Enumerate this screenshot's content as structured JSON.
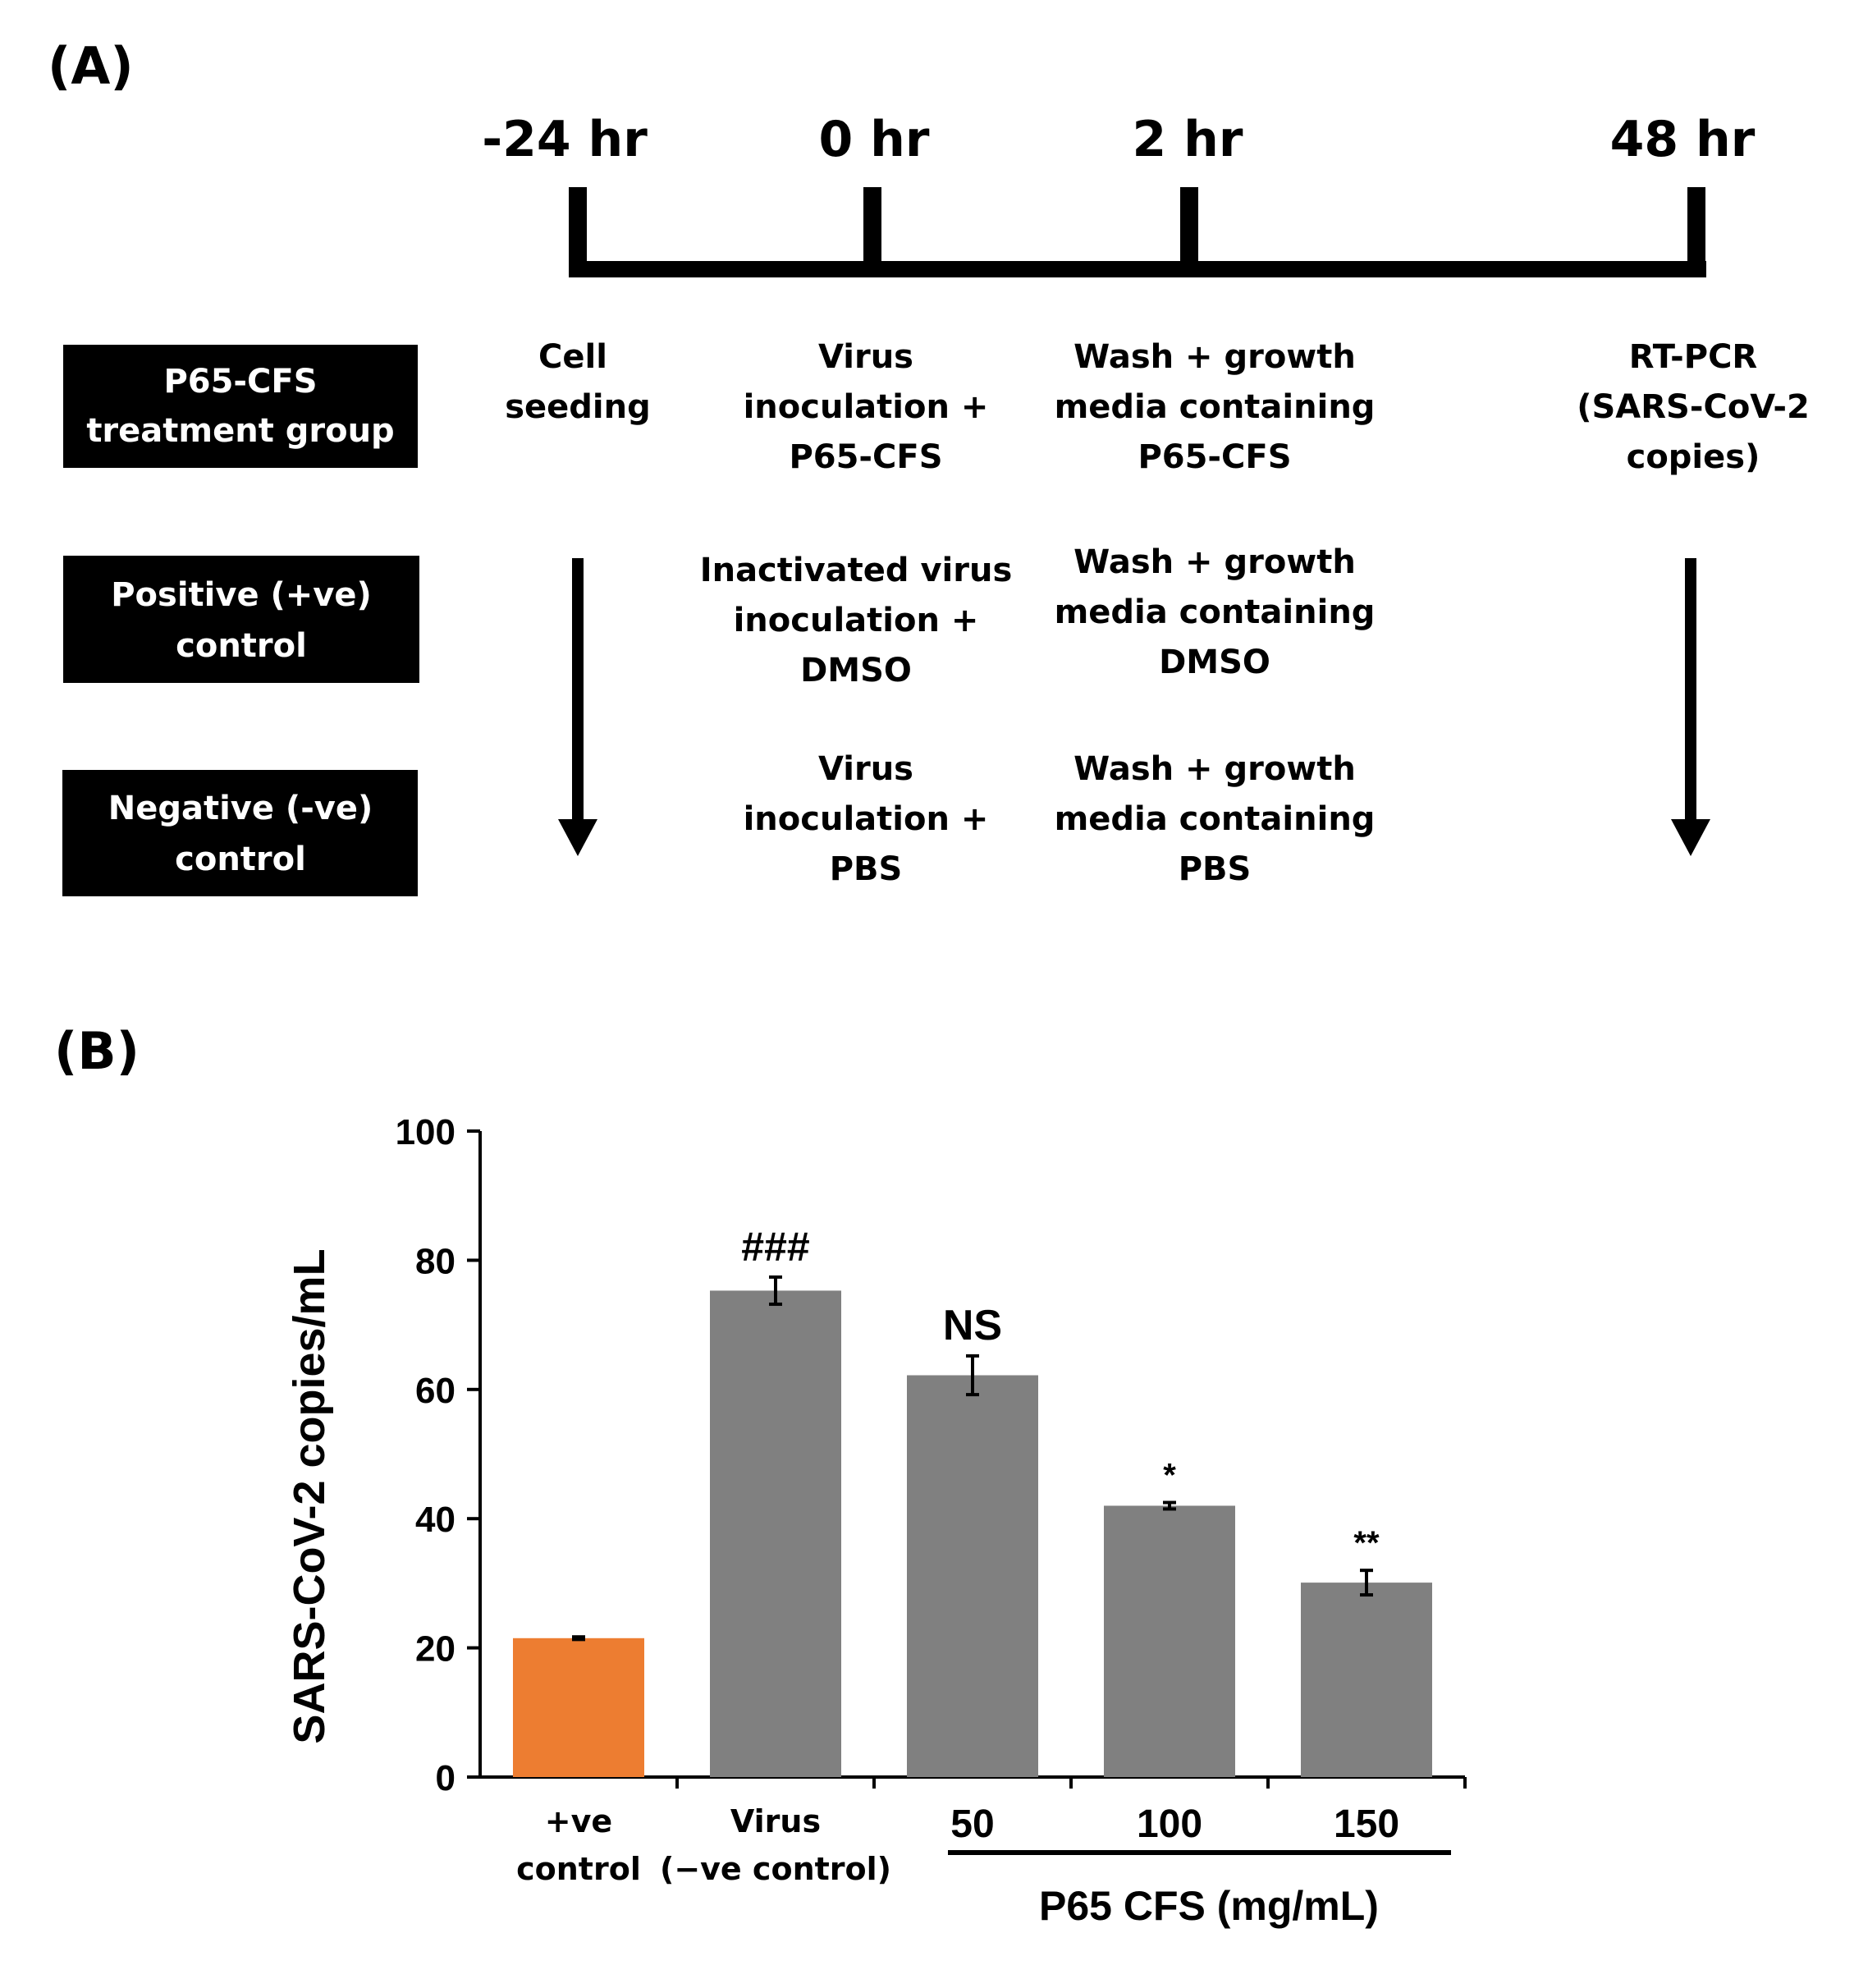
{
  "panel_a": {
    "label": "(A)",
    "timepoints": [
      "-24 hr",
      "0 hr",
      "2 hr",
      "48 hr"
    ],
    "groups": [
      {
        "name": [
          "P65-CFS",
          "treatment group"
        ],
        "steps": [
          [
            "Cell",
            "seeding"
          ],
          [
            "Virus",
            "inoculation +",
            "P65-CFS"
          ],
          [
            "Wash + growth",
            "media containing",
            "P65-CFS"
          ],
          [
            "RT-PCR",
            "(SARS-CoV-2",
            "copies)"
          ]
        ]
      },
      {
        "name": [
          "Positive (+ve)",
          "control"
        ],
        "steps": [
          [],
          [
            "Inactivated virus",
            "inoculation +",
            "DMSO"
          ],
          [
            "Wash + growth",
            "media containing",
            "DMSO"
          ],
          []
        ]
      },
      {
        "name": [
          "Negative (-ve)",
          "control"
        ],
        "steps": [
          [],
          [
            "Virus",
            "inoculation +",
            "PBS"
          ],
          [
            "Wash + growth",
            "media containing",
            "PBS"
          ],
          []
        ]
      }
    ]
  },
  "panel_b": {
    "label": "(B)",
    "chart_data": {
      "type": "bar",
      "ylabel": "SARS-CoV-2 copies/mL",
      "ylim": [
        0,
        100
      ],
      "yticks": [
        0,
        20,
        40,
        60,
        80,
        100
      ],
      "categories": [
        [
          "+ve",
          "control"
        ],
        [
          "Virus",
          "(−ve control)"
        ],
        [
          "50"
        ],
        [
          "100"
        ],
        [
          "150"
        ]
      ],
      "values": [
        21.5,
        75.3,
        62.2,
        42.0,
        30.1
      ],
      "errors": [
        0.2,
        2.1,
        3.0,
        0.5,
        1.9
      ],
      "significance": [
        "",
        "###",
        "NS",
        "*",
        "**"
      ],
      "colors": [
        "#ed7d31",
        "#808080",
        "#808080",
        "#808080",
        "#808080"
      ],
      "group_label": "P65 CFS (mg/mL)"
    }
  }
}
